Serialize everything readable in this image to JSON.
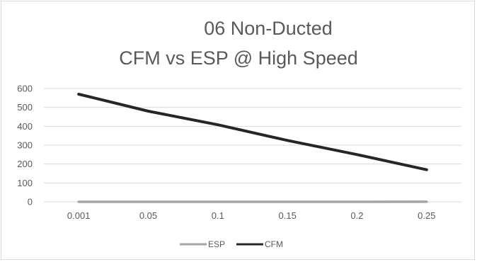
{
  "chart_data": {
    "type": "line",
    "title": "06 Non-Ducted",
    "subtitle": "CFM vs ESP @ High Speed",
    "xlabel": "",
    "ylabel": "",
    "categories": [
      "0.001",
      "0.05",
      "0.1",
      "0.15",
      "0.2",
      "0.25"
    ],
    "y_ticks": [
      "0",
      "100",
      "200",
      "300",
      "400",
      "500",
      "600"
    ],
    "ylim": [
      0,
      600
    ],
    "grid": true,
    "legend_position": "bottom",
    "series": [
      {
        "name": "ESP",
        "color": "#a5a5a5",
        "values": [
          0.001,
          0.05,
          0.1,
          0.15,
          0.2,
          0.25
        ]
      },
      {
        "name": "CFM",
        "color": "#262626",
        "values": [
          570,
          480,
          408,
          325,
          250,
          170
        ]
      }
    ]
  }
}
